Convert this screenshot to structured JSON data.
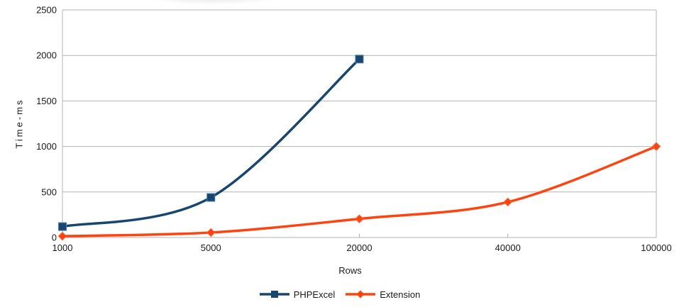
{
  "chart_data": {
    "type": "line",
    "title": "",
    "xlabel": "Rows",
    "ylabel": "Time-ms",
    "categories": [
      "1000",
      "5000",
      "20000",
      "40000",
      "100000"
    ],
    "y_ticks": [
      0,
      500,
      1000,
      1500,
      2000,
      2500
    ],
    "ylim": [
      0,
      2500
    ],
    "grid": "horizontal gridlines on, light grey",
    "legend_position": "bottom-center",
    "line_style": "smooth",
    "axis_color": "#B3B3B3",
    "text_color": "#1A1A1A",
    "background_color": "#FFFFFF",
    "series": [
      {
        "name": "PHPExcel",
        "marker": "square",
        "color": "#17466F",
        "marker_edge_color": "#4A7CB0",
        "values": [
          120,
          440,
          1960,
          null,
          null
        ]
      },
      {
        "name": "Extension",
        "marker": "diamond",
        "color": "#FF420E",
        "marker_edge_color": "#FF5E2E",
        "values": [
          15,
          55,
          205,
          390,
          1000
        ]
      }
    ]
  }
}
